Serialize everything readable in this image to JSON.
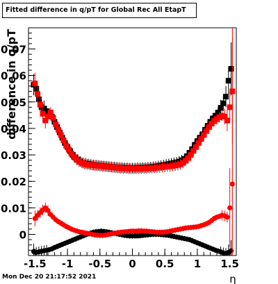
{
  "title": "Fitted difference in q/pT for Global Rec All EtapT",
  "timestamp": "Mon Dec 20 21:17:52 2021",
  "colors": {
    "series_a": "#000000",
    "series_b": "#ff0000",
    "axis": "#000000"
  },
  "chart_data": {
    "type": "scatter",
    "title": "Fitted difference in q/pT for Global Rec All EtapT",
    "xlabel": "η",
    "ylabel": "difference in q/pT",
    "xlim": [
      -1.6,
      1.6
    ],
    "ylim": [
      -0.008,
      0.078
    ],
    "x_ticks": [
      {
        "value": -1.5,
        "label": "-1.5"
      },
      {
        "value": -1.0,
        "label": "-1"
      },
      {
        "value": -0.5,
        "label": "-0.5"
      },
      {
        "value": 0.0,
        "label": "0"
      },
      {
        "value": 0.5,
        "label": "0.5"
      },
      {
        "value": 1.0,
        "label": "1"
      },
      {
        "value": 1.5,
        "label": "1.5"
      }
    ],
    "y_ticks": [
      {
        "value": 0.0,
        "label": "0"
      },
      {
        "value": 0.01,
        "label": "0.01"
      },
      {
        "value": 0.02,
        "label": "0.02"
      },
      {
        "value": 0.03,
        "label": "0.03"
      },
      {
        "value": 0.04,
        "label": "0.04"
      },
      {
        "value": 0.05,
        "label": "0.05"
      },
      {
        "value": 0.06,
        "label": "0.06"
      },
      {
        "value": 0.07,
        "label": "0.07"
      }
    ],
    "grid": false,
    "series": [
      {
        "color": "#000000",
        "marker": "square",
        "x": [
          -1.52,
          -1.48,
          -1.44,
          -1.4,
          -1.36,
          -1.32,
          -1.28,
          -1.24,
          -1.2,
          -1.16,
          -1.12,
          -1.08,
          -1.04,
          -1.0,
          -0.96,
          -0.92,
          -0.88,
          -0.84,
          -0.8,
          -0.76,
          -0.72,
          -0.68,
          -0.64,
          -0.6,
          -0.56,
          -0.52,
          -0.48,
          -0.44,
          -0.4,
          -0.36,
          -0.32,
          -0.28,
          -0.24,
          -0.2,
          -0.16,
          -0.12,
          -0.08,
          -0.04,
          0.0,
          0.04,
          0.08,
          0.12,
          0.16,
          0.2,
          0.24,
          0.28,
          0.32,
          0.36,
          0.4,
          0.44,
          0.48,
          0.52,
          0.56,
          0.6,
          0.64,
          0.68,
          0.72,
          0.76,
          0.8,
          0.84,
          0.88,
          0.92,
          0.96,
          1.0,
          1.04,
          1.08,
          1.12,
          1.16,
          1.2,
          1.24,
          1.28,
          1.32,
          1.36,
          1.4,
          1.44,
          1.48,
          1.52
        ],
        "y": [
          0.0565,
          0.055,
          0.051,
          0.048,
          0.0475,
          0.0465,
          0.0455,
          0.0445,
          0.0425,
          0.0405,
          0.0385,
          0.0365,
          0.0345,
          0.033,
          0.0315,
          0.03,
          0.029,
          0.0282,
          0.0275,
          0.027,
          0.0268,
          0.0266,
          0.0264,
          0.0262,
          0.0261,
          0.026,
          0.0259,
          0.0258,
          0.0257,
          0.0256,
          0.0255,
          0.0254,
          0.0253,
          0.0252,
          0.0252,
          0.0251,
          0.0251,
          0.025,
          0.025,
          0.025,
          0.0251,
          0.0251,
          0.0252,
          0.0252,
          0.0253,
          0.0254,
          0.0255,
          0.0256,
          0.0258,
          0.026,
          0.0262,
          0.0264,
          0.0266,
          0.0268,
          0.027,
          0.0272,
          0.0275,
          0.028,
          0.0285,
          0.0295,
          0.0308,
          0.0322,
          0.0338,
          0.0352,
          0.0365,
          0.0378,
          0.0395,
          0.041,
          0.0425,
          0.0438,
          0.0448,
          0.046,
          0.0478,
          0.0495,
          0.052,
          0.058,
          0.0625
        ],
        "err": [
          0.004,
          0.003,
          0.003,
          0.003,
          0.003,
          0.002,
          0.002,
          0.002,
          0.002,
          0.002,
          0.002,
          0.002,
          0.002,
          0.002,
          0.002,
          0.002,
          0.002,
          0.002,
          0.002,
          0.002,
          0.002,
          0.002,
          0.002,
          0.002,
          0.002,
          0.002,
          0.002,
          0.002,
          0.002,
          0.002,
          0.002,
          0.002,
          0.002,
          0.002,
          0.002,
          0.002,
          0.002,
          0.002,
          0.002,
          0.002,
          0.002,
          0.002,
          0.002,
          0.002,
          0.002,
          0.002,
          0.002,
          0.002,
          0.002,
          0.002,
          0.002,
          0.002,
          0.002,
          0.002,
          0.002,
          0.002,
          0.002,
          0.002,
          0.002,
          0.002,
          0.002,
          0.002,
          0.002,
          0.002,
          0.002,
          0.002,
          0.002,
          0.002,
          0.002,
          0.002,
          0.002,
          0.002,
          0.003,
          0.003,
          0.004,
          0.005,
          0.01
        ]
      },
      {
        "color": "#ff0000",
        "marker": "square",
        "x": [
          -1.5,
          -1.46,
          -1.42,
          -1.38,
          -1.34,
          -1.3,
          -1.26,
          -1.22,
          -1.18,
          -1.14,
          -1.1,
          -1.06,
          -1.02,
          -0.98,
          -0.94,
          -0.9,
          -0.86,
          -0.82,
          -0.78,
          -0.74,
          -0.7,
          -0.66,
          -0.62,
          -0.58,
          -0.54,
          -0.5,
          -0.46,
          -0.42,
          -0.38,
          -0.34,
          -0.3,
          -0.26,
          -0.22,
          -0.18,
          -0.14,
          -0.1,
          -0.06,
          -0.02,
          0.02,
          0.06,
          0.1,
          0.14,
          0.18,
          0.22,
          0.26,
          0.3,
          0.34,
          0.38,
          0.42,
          0.46,
          0.5,
          0.54,
          0.58,
          0.62,
          0.66,
          0.7,
          0.74,
          0.78,
          0.82,
          0.86,
          0.9,
          0.94,
          0.98,
          1.02,
          1.06,
          1.1,
          1.14,
          1.18,
          1.22,
          1.26,
          1.3,
          1.34,
          1.38,
          1.42,
          1.46,
          1.5,
          1.54
        ],
        "y": [
          0.057,
          0.053,
          0.049,
          0.0455,
          0.043,
          0.0445,
          0.046,
          0.044,
          0.0415,
          0.0395,
          0.0375,
          0.0355,
          0.0335,
          0.032,
          0.0305,
          0.0292,
          0.0282,
          0.0275,
          0.027,
          0.0266,
          0.0264,
          0.0262,
          0.0261,
          0.026,
          0.0259,
          0.0258,
          0.0257,
          0.0256,
          0.0255,
          0.0254,
          0.0253,
          0.0252,
          0.0251,
          0.025,
          0.0249,
          0.0249,
          0.0248,
          0.0248,
          0.0248,
          0.0248,
          0.0248,
          0.0248,
          0.0249,
          0.0249,
          0.025,
          0.025,
          0.0251,
          0.0252,
          0.0253,
          0.0254,
          0.0255,
          0.0256,
          0.0257,
          0.0258,
          0.026,
          0.0262,
          0.0265,
          0.027,
          0.0278,
          0.0288,
          0.03,
          0.0315,
          0.033,
          0.0345,
          0.036,
          0.0375,
          0.039,
          0.0405,
          0.0418,
          0.0428,
          0.0435,
          0.0442,
          0.0448,
          0.0445,
          0.043,
          0.048,
          0.054
        ],
        "err": [
          0.004,
          0.003,
          0.003,
          0.003,
          0.003,
          0.002,
          0.002,
          0.002,
          0.002,
          0.002,
          0.002,
          0.002,
          0.002,
          0.002,
          0.002,
          0.002,
          0.002,
          0.002,
          0.002,
          0.002,
          0.002,
          0.002,
          0.002,
          0.002,
          0.002,
          0.002,
          0.002,
          0.002,
          0.002,
          0.002,
          0.002,
          0.002,
          0.002,
          0.002,
          0.002,
          0.002,
          0.002,
          0.002,
          0.002,
          0.002,
          0.002,
          0.002,
          0.002,
          0.002,
          0.002,
          0.002,
          0.002,
          0.002,
          0.002,
          0.002,
          0.002,
          0.002,
          0.002,
          0.002,
          0.002,
          0.002,
          0.002,
          0.002,
          0.002,
          0.002,
          0.002,
          0.002,
          0.002,
          0.002,
          0.002,
          0.002,
          0.002,
          0.002,
          0.002,
          0.002,
          0.002,
          0.002,
          0.002,
          0.003,
          0.004,
          0.006,
          0.02
        ]
      },
      {
        "color": "#000000",
        "marker": "circle",
        "x": [
          -1.52,
          -1.48,
          -1.44,
          -1.4,
          -1.36,
          -1.32,
          -1.28,
          -1.24,
          -1.2,
          -1.16,
          -1.12,
          -1.08,
          -1.04,
          -1.0,
          -0.96,
          -0.92,
          -0.88,
          -0.84,
          -0.8,
          -0.76,
          -0.72,
          -0.68,
          -0.64,
          -0.6,
          -0.56,
          -0.52,
          -0.48,
          -0.44,
          -0.4,
          -0.36,
          -0.32,
          -0.28,
          -0.24,
          -0.2,
          -0.16,
          -0.12,
          -0.08,
          -0.04,
          0.0,
          0.04,
          0.08,
          0.12,
          0.16,
          0.2,
          0.24,
          0.28,
          0.32,
          0.36,
          0.4,
          0.44,
          0.48,
          0.52,
          0.56,
          0.6,
          0.64,
          0.68,
          0.72,
          0.76,
          0.8,
          0.84,
          0.88,
          0.92,
          0.96,
          1.0,
          1.04,
          1.08,
          1.12,
          1.16,
          1.2,
          1.24,
          1.28,
          1.32,
          1.36,
          1.4,
          1.44,
          1.48,
          1.52
        ],
        "y": [
          -0.0065,
          -0.0068,
          -0.0066,
          -0.0064,
          -0.0062,
          -0.006,
          -0.0058,
          -0.0055,
          -0.005,
          -0.0046,
          -0.0042,
          -0.0038,
          -0.0034,
          -0.003,
          -0.0026,
          -0.0022,
          -0.0018,
          -0.0014,
          -0.001,
          -0.0006,
          -0.0002,
          0.0002,
          0.0005,
          0.0008,
          0.001,
          0.0011,
          0.0012,
          0.0011,
          0.001,
          0.0008,
          0.0006,
          0.0004,
          0.0002,
          0.0,
          -0.0002,
          -0.0004,
          -0.0005,
          -0.0006,
          -0.0006,
          -0.0006,
          -0.0006,
          -0.0005,
          -0.0004,
          -0.0003,
          -0.0002,
          -0.0001,
          0.0,
          0.0,
          0.0,
          -0.0001,
          -0.0002,
          -0.0003,
          -0.0004,
          -0.0006,
          -0.0008,
          -0.001,
          -0.0012,
          -0.0014,
          -0.0016,
          -0.0018,
          -0.002,
          -0.0024,
          -0.0028,
          -0.0032,
          -0.0036,
          -0.004,
          -0.0044,
          -0.0048,
          -0.0052,
          -0.0056,
          -0.006,
          -0.0063,
          -0.0066,
          -0.007,
          -0.0072,
          -0.0068,
          -0.0062
        ],
        "err": [
          0.003,
          0.002,
          0.002,
          0.002,
          0.002,
          0.002,
          0.001,
          0.001,
          0.001,
          0.001,
          0.001,
          0.001,
          0.001,
          0.001,
          0.001,
          0.001,
          0.001,
          0.001,
          0.001,
          0.001,
          0.001,
          0.001,
          0.001,
          0.001,
          0.001,
          0.001,
          0.001,
          0.001,
          0.001,
          0.001,
          0.001,
          0.001,
          0.001,
          0.001,
          0.001,
          0.001,
          0.001,
          0.001,
          0.001,
          0.001,
          0.001,
          0.001,
          0.001,
          0.001,
          0.001,
          0.001,
          0.001,
          0.001,
          0.001,
          0.001,
          0.001,
          0.001,
          0.001,
          0.001,
          0.001,
          0.001,
          0.001,
          0.001,
          0.001,
          0.001,
          0.001,
          0.001,
          0.001,
          0.001,
          0.001,
          0.001,
          0.001,
          0.001,
          0.001,
          0.001,
          0.001,
          0.001,
          0.002,
          0.002,
          0.002,
          0.003,
          0.004
        ]
      },
      {
        "color": "#ff0000",
        "marker": "circle",
        "x": [
          -1.5,
          -1.46,
          -1.42,
          -1.38,
          -1.34,
          -1.3,
          -1.26,
          -1.22,
          -1.18,
          -1.14,
          -1.1,
          -1.06,
          -1.02,
          -0.98,
          -0.94,
          -0.9,
          -0.86,
          -0.82,
          -0.78,
          -0.74,
          -0.7,
          -0.66,
          -0.62,
          -0.58,
          -0.54,
          -0.5,
          -0.46,
          -0.42,
          -0.38,
          -0.34,
          -0.3,
          -0.26,
          -0.22,
          -0.18,
          -0.14,
          -0.1,
          -0.06,
          -0.02,
          0.02,
          0.06,
          0.1,
          0.14,
          0.18,
          0.22,
          0.26,
          0.3,
          0.34,
          0.38,
          0.42,
          0.46,
          0.5,
          0.54,
          0.58,
          0.62,
          0.66,
          0.7,
          0.74,
          0.78,
          0.82,
          0.86,
          0.9,
          0.94,
          0.98,
          1.02,
          1.06,
          1.1,
          1.14,
          1.18,
          1.22,
          1.26,
          1.3,
          1.34,
          1.38,
          1.42,
          1.46,
          1.5,
          1.54
        ],
        "y": [
          0.006,
          0.0072,
          0.0082,
          0.0092,
          0.01,
          0.009,
          0.0075,
          0.0065,
          0.0055,
          0.0048,
          0.0042,
          0.0036,
          0.003,
          0.0025,
          0.002,
          0.0016,
          0.0013,
          0.001,
          0.0008,
          0.0006,
          0.0004,
          0.0002,
          0.0,
          -0.0002,
          -0.0003,
          -0.0004,
          -0.0004,
          -0.0003,
          -0.0001,
          0.0001,
          0.0003,
          0.0005,
          0.0007,
          0.0008,
          0.0009,
          0.001,
          0.0011,
          0.0012,
          0.0012,
          0.0012,
          0.0013,
          0.0013,
          0.0012,
          0.0012,
          0.0011,
          0.001,
          0.0009,
          0.0008,
          0.0008,
          0.0008,
          0.0009,
          0.001,
          0.0012,
          0.0014,
          0.0016,
          0.0018,
          0.002,
          0.0022,
          0.0024,
          0.0025,
          0.0026,
          0.0027,
          0.0028,
          0.003,
          0.0033,
          0.0036,
          0.004,
          0.0045,
          0.0052,
          0.006,
          0.0065,
          0.0068,
          0.0072,
          0.007,
          0.0065,
          0.01,
          0.019
        ],
        "err": [
          0.003,
          0.002,
          0.002,
          0.002,
          0.002,
          0.002,
          0.001,
          0.001,
          0.001,
          0.001,
          0.001,
          0.001,
          0.001,
          0.001,
          0.001,
          0.001,
          0.001,
          0.001,
          0.001,
          0.001,
          0.001,
          0.001,
          0.001,
          0.001,
          0.001,
          0.001,
          0.001,
          0.001,
          0.001,
          0.001,
          0.001,
          0.001,
          0.001,
          0.001,
          0.001,
          0.001,
          0.001,
          0.001,
          0.001,
          0.001,
          0.001,
          0.001,
          0.001,
          0.001,
          0.001,
          0.001,
          0.001,
          0.001,
          0.001,
          0.001,
          0.001,
          0.001,
          0.001,
          0.001,
          0.001,
          0.001,
          0.001,
          0.001,
          0.001,
          0.001,
          0.001,
          0.001,
          0.001,
          0.001,
          0.001,
          0.001,
          0.001,
          0.001,
          0.001,
          0.001,
          0.001,
          0.001,
          0.002,
          0.002,
          0.002,
          0.015,
          0.06
        ]
      }
    ]
  }
}
